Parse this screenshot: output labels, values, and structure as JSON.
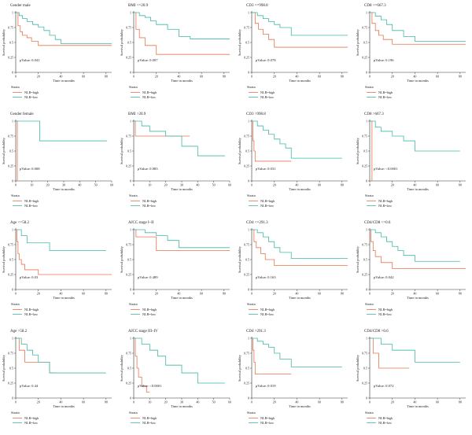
{
  "figure": {
    "y_axis_label": "Survival probability",
    "x_axis_label": "Time in months",
    "legend_title": "Strata",
    "legend_items": [
      "NLR=high",
      "NLR=low"
    ],
    "colors": {
      "high": "#E8744F",
      "low": "#3FB8A6",
      "axis": "#333333"
    }
  },
  "chart_data": [
    {
      "type": "line",
      "title": "Gender male",
      "pvalue": "pValue: 0.041",
      "xlim": [
        0,
        85
      ],
      "ylim": [
        0,
        1
      ],
      "xticks": [
        0,
        20,
        40,
        60,
        80
      ],
      "yticks": [
        0,
        0.25,
        0.5,
        0.75,
        1
      ],
      "series": [
        {
          "name": "NLR=high",
          "x": [
            0,
            2,
            4,
            6,
            10,
            14,
            20,
            85
          ],
          "y": [
            1,
            0.78,
            0.68,
            0.62,
            0.58,
            0.52,
            0.45,
            0.45
          ]
        },
        {
          "name": "NLR=low",
          "x": [
            0,
            3,
            6,
            10,
            15,
            20,
            25,
            30,
            35,
            40,
            85
          ],
          "y": [
            1,
            0.95,
            0.9,
            0.85,
            0.8,
            0.76,
            0.7,
            0.62,
            0.55,
            0.48,
            0.48
          ]
        }
      ]
    },
    {
      "type": "line",
      "title": "BMI <=20.9",
      "pvalue": "pValue: 0.007",
      "xlim": [
        0,
        85
      ],
      "ylim": [
        0,
        1
      ],
      "xticks": [
        0,
        20,
        40,
        60,
        80
      ],
      "yticks": [
        0,
        0.25,
        0.5,
        0.75,
        1
      ],
      "series": [
        {
          "name": "NLR=high",
          "x": [
            0,
            2,
            5,
            10,
            20,
            85
          ],
          "y": [
            1,
            0.72,
            0.58,
            0.45,
            0.3,
            0.3
          ]
        },
        {
          "name": "NLR=low",
          "x": [
            0,
            5,
            10,
            15,
            20,
            30,
            40,
            50,
            85
          ],
          "y": [
            1,
            0.95,
            0.92,
            0.86,
            0.8,
            0.72,
            0.6,
            0.56,
            0.56
          ]
        }
      ]
    },
    {
      "type": "line",
      "title": "CD3 <=998.8",
      "pvalue": "pValue: 0.078",
      "xlim": [
        0,
        85
      ],
      "ylim": [
        0,
        1
      ],
      "xticks": [
        0,
        20,
        40,
        60,
        80
      ],
      "yticks": [
        0,
        0.25,
        0.5,
        0.75,
        1
      ],
      "series": [
        {
          "name": "NLR=high",
          "x": [
            0,
            3,
            6,
            10,
            15,
            20,
            85
          ],
          "y": [
            1,
            0.82,
            0.72,
            0.64,
            0.55,
            0.42,
            0.42
          ]
        },
        {
          "name": "NLR=low",
          "x": [
            0,
            5,
            10,
            15,
            20,
            25,
            35,
            85
          ],
          "y": [
            1,
            0.95,
            0.9,
            0.85,
            0.8,
            0.75,
            0.62,
            0.62
          ]
        }
      ]
    },
    {
      "type": "line",
      "title": "CD8 <=667.3",
      "pvalue": "pValue: 0.196",
      "xlim": [
        0,
        85
      ],
      "ylim": [
        0,
        1
      ],
      "xticks": [
        0,
        20,
        40,
        60,
        80
      ],
      "yticks": [
        0,
        0.25,
        0.5,
        0.75,
        1
      ],
      "series": [
        {
          "name": "NLR=high",
          "x": [
            0,
            2,
            5,
            8,
            12,
            20,
            85
          ],
          "y": [
            1,
            0.82,
            0.7,
            0.62,
            0.55,
            0.47,
            0.47
          ]
        },
        {
          "name": "NLR=low",
          "x": [
            0,
            5,
            10,
            15,
            20,
            30,
            40,
            85
          ],
          "y": [
            1,
            0.94,
            0.88,
            0.8,
            0.7,
            0.6,
            0.52,
            0.52
          ]
        }
      ]
    },
    {
      "type": "line",
      "title": "Gender female",
      "pvalue": "pValue: 0.008",
      "xlim": [
        0,
        60
      ],
      "ylim": [
        0,
        1
      ],
      "xticks": [
        0,
        10,
        20,
        30,
        40,
        50,
        60
      ],
      "yticks": [
        0,
        0.25,
        0.5,
        0.75,
        1
      ],
      "series": [
        {
          "name": "NLR=high",
          "x": [
            0,
            1,
            1
          ],
          "y": [
            1,
            1,
            0
          ]
        },
        {
          "name": "NLR=low",
          "x": [
            0,
            10,
            15,
            57
          ],
          "y": [
            1,
            1,
            0.67,
            0.67
          ]
        }
      ]
    },
    {
      "type": "line",
      "title": "BMI >20.9",
      "pvalue": "pValue: 0.883",
      "xlim": [
        0,
        60
      ],
      "ylim": [
        0,
        1
      ],
      "xticks": [
        0,
        10,
        20,
        30,
        40,
        50,
        60
      ],
      "yticks": [
        0,
        0.25,
        0.5,
        0.75,
        1
      ],
      "series": [
        {
          "name": "NLR=high",
          "x": [
            0,
            1,
            35
          ],
          "y": [
            1,
            0.75,
            0.75
          ]
        },
        {
          "name": "NLR=low",
          "x": [
            0,
            5,
            10,
            20,
            30,
            40,
            57
          ],
          "y": [
            1,
            0.92,
            0.83,
            0.75,
            0.58,
            0.42,
            0.42
          ]
        }
      ]
    },
    {
      "type": "line",
      "title": "CD3 >998.8",
      "pvalue": "pValue: 0.031",
      "xlim": [
        0,
        85
      ],
      "ylim": [
        0,
        1
      ],
      "xticks": [
        0,
        20,
        40,
        60,
        80
      ],
      "yticks": [
        0,
        0.25,
        0.5,
        0.75,
        1
      ],
      "series": [
        {
          "name": "NLR=high",
          "x": [
            0,
            1,
            2,
            3,
            35
          ],
          "y": [
            1,
            0.67,
            0.5,
            0.33,
            0.33
          ]
        },
        {
          "name": "NLR=low",
          "x": [
            0,
            5,
            10,
            15,
            20,
            25,
            30,
            35,
            80
          ],
          "y": [
            1,
            0.92,
            0.85,
            0.78,
            0.7,
            0.62,
            0.55,
            0.38,
            0.38
          ]
        }
      ]
    },
    {
      "type": "line",
      "title": "CD8 >667.3",
      "pvalue": "pValue: <0.0001",
      "xlim": [
        0,
        85
      ],
      "ylim": [
        0,
        1
      ],
      "xticks": [
        0,
        20,
        40,
        60,
        80
      ],
      "yticks": [
        0,
        0.25,
        0.5,
        0.75,
        1
      ],
      "series": [
        {
          "name": "NLR=high",
          "x": [
            0,
            2,
            2
          ],
          "y": [
            1,
            1,
            0
          ]
        },
        {
          "name": "NLR=low",
          "x": [
            0,
            5,
            10,
            20,
            30,
            40,
            80
          ],
          "y": [
            1,
            0.9,
            0.83,
            0.75,
            0.67,
            0.5,
            0.5
          ]
        }
      ]
    },
    {
      "type": "line",
      "title": "Age <=58.2",
      "pvalue": "pValue: 0.03",
      "xlim": [
        0,
        85
      ],
      "ylim": [
        0,
        1
      ],
      "xticks": [
        0,
        20,
        40,
        60,
        80
      ],
      "yticks": [
        0,
        0.25,
        0.5,
        0.75,
        1
      ],
      "series": [
        {
          "name": "NLR=high",
          "x": [
            0,
            1,
            2,
            3,
            5,
            8,
            20,
            85
          ],
          "y": [
            1,
            0.8,
            0.6,
            0.5,
            0.42,
            0.33,
            0.25,
            0.25
          ]
        },
        {
          "name": "NLR=low",
          "x": [
            0,
            5,
            10,
            30,
            80
          ],
          "y": [
            1,
            0.9,
            0.78,
            0.65,
            0.65
          ]
        }
      ]
    },
    {
      "type": "line",
      "title": "AJCC stage I–II",
      "pvalue": "pValue: 0.489",
      "xlim": [
        0,
        85
      ],
      "ylim": [
        0,
        1
      ],
      "xticks": [
        0,
        20,
        40,
        60,
        80
      ],
      "yticks": [
        0,
        0.25,
        0.5,
        0.75,
        1
      ],
      "series": [
        {
          "name": "NLR=high",
          "x": [
            0,
            2,
            20,
            85
          ],
          "y": [
            1,
            0.88,
            0.65,
            0.65
          ]
        },
        {
          "name": "NLR=low",
          "x": [
            0,
            10,
            20,
            30,
            40,
            85
          ],
          "y": [
            1,
            0.95,
            0.9,
            0.82,
            0.7,
            0.7
          ]
        }
      ]
    },
    {
      "type": "line",
      "title": "CD4 <=291.3",
      "pvalue": "pValue: 0.163",
      "xlim": [
        0,
        85
      ],
      "ylim": [
        0,
        1
      ],
      "xticks": [
        0,
        20,
        40,
        60,
        80
      ],
      "yticks": [
        0,
        0.25,
        0.5,
        0.75,
        1
      ],
      "series": [
        {
          "name": "NLR=high",
          "x": [
            0,
            2,
            4,
            8,
            12,
            20,
            85
          ],
          "y": [
            1,
            0.8,
            0.7,
            0.6,
            0.5,
            0.4,
            0.4
          ]
        },
        {
          "name": "NLR=low",
          "x": [
            0,
            5,
            10,
            15,
            20,
            25,
            35,
            85
          ],
          "y": [
            1,
            0.95,
            0.88,
            0.8,
            0.7,
            0.62,
            0.52,
            0.52
          ]
        }
      ]
    },
    {
      "type": "line",
      "title": "CD4/CD8 <=0.6",
      "pvalue": "pValue: 0.042",
      "xlim": [
        0,
        85
      ],
      "ylim": [
        0,
        1
      ],
      "xticks": [
        0,
        20,
        40,
        60,
        80
      ],
      "yticks": [
        0,
        0.25,
        0.5,
        0.75,
        1
      ],
      "series": [
        {
          "name": "NLR=high",
          "x": [
            0,
            1,
            3,
            5,
            10,
            20,
            85
          ],
          "y": [
            1,
            0.8,
            0.65,
            0.55,
            0.45,
            0.35,
            0.35
          ]
        },
        {
          "name": "NLR=low",
          "x": [
            0,
            5,
            10,
            15,
            20,
            25,
            30,
            40,
            80
          ],
          "y": [
            1,
            0.95,
            0.88,
            0.8,
            0.72,
            0.65,
            0.57,
            0.47,
            0.47
          ]
        }
      ]
    },
    {
      "type": "line",
      "title": "Age >58.2",
      "pvalue": "pValue: 0.44",
      "xlim": [
        0,
        85
      ],
      "ylim": [
        0,
        1
      ],
      "xticks": [
        0,
        20,
        40,
        60,
        80
      ],
      "yticks": [
        0,
        0.25,
        0.5,
        0.75,
        1
      ],
      "series": [
        {
          "name": "NLR=high",
          "x": [
            0,
            3,
            8,
            20,
            30,
            35
          ],
          "y": [
            1,
            0.8,
            0.6,
            0.6,
            0.42,
            0.42
          ]
        },
        {
          "name": "NLR=low",
          "x": [
            0,
            5,
            10,
            15,
            20,
            30,
            80
          ],
          "y": [
            1,
            0.9,
            0.8,
            0.72,
            0.6,
            0.42,
            0.42
          ]
        }
      ]
    },
    {
      "type": "line",
      "title": "AJCC stage III–IV",
      "pvalue": "pValue: <0.0001",
      "xlim": [
        0,
        60
      ],
      "ylim": [
        0,
        1
      ],
      "xticks": [
        0,
        10,
        20,
        30,
        40,
        50,
        60
      ],
      "yticks": [
        0,
        0.25,
        0.5,
        0.75,
        1
      ],
      "series": [
        {
          "name": "NLR=high",
          "x": [
            0,
            1,
            2,
            3,
            5,
            8,
            10
          ],
          "y": [
            1,
            0.7,
            0.5,
            0.35,
            0.2,
            0.1,
            0.1
          ]
        },
        {
          "name": "NLR=low",
          "x": [
            0,
            5,
            10,
            15,
            20,
            30,
            40,
            57
          ],
          "y": [
            1,
            0.9,
            0.8,
            0.7,
            0.55,
            0.42,
            0.25,
            0.25
          ]
        }
      ]
    },
    {
      "type": "line",
      "title": "CD4 >291.3",
      "pvalue": "pValue: 0.019",
      "xlim": [
        0,
        85
      ],
      "ylim": [
        0,
        1
      ],
      "xticks": [
        0,
        20,
        40,
        60,
        80
      ],
      "yticks": [
        0,
        0.25,
        0.5,
        0.75,
        1
      ],
      "series": [
        {
          "name": "NLR=high",
          "x": [
            0,
            1,
            2,
            3,
            35
          ],
          "y": [
            1,
            0.8,
            0.6,
            0.4,
            0.4
          ]
        },
        {
          "name": "NLR=low",
          "x": [
            0,
            5,
            10,
            15,
            20,
            25,
            35,
            80
          ],
          "y": [
            1,
            0.95,
            0.9,
            0.85,
            0.75,
            0.65,
            0.52,
            0.52
          ]
        }
      ]
    },
    {
      "type": "line",
      "title": "CD4/CD8 >0.6",
      "pvalue": "pValue: 0.072",
      "xlim": [
        0,
        85
      ],
      "ylim": [
        0,
        1
      ],
      "xticks": [
        0,
        20,
        40,
        60,
        80
      ],
      "yticks": [
        0,
        0.25,
        0.5,
        0.75,
        1
      ],
      "series": [
        {
          "name": "NLR=high",
          "x": [
            0,
            3,
            8,
            35
          ],
          "y": [
            1,
            0.75,
            0.5,
            0.5
          ]
        },
        {
          "name": "NLR=low",
          "x": [
            0,
            10,
            20,
            40,
            80
          ],
          "y": [
            1,
            0.9,
            0.8,
            0.6,
            0.6
          ]
        }
      ]
    }
  ]
}
